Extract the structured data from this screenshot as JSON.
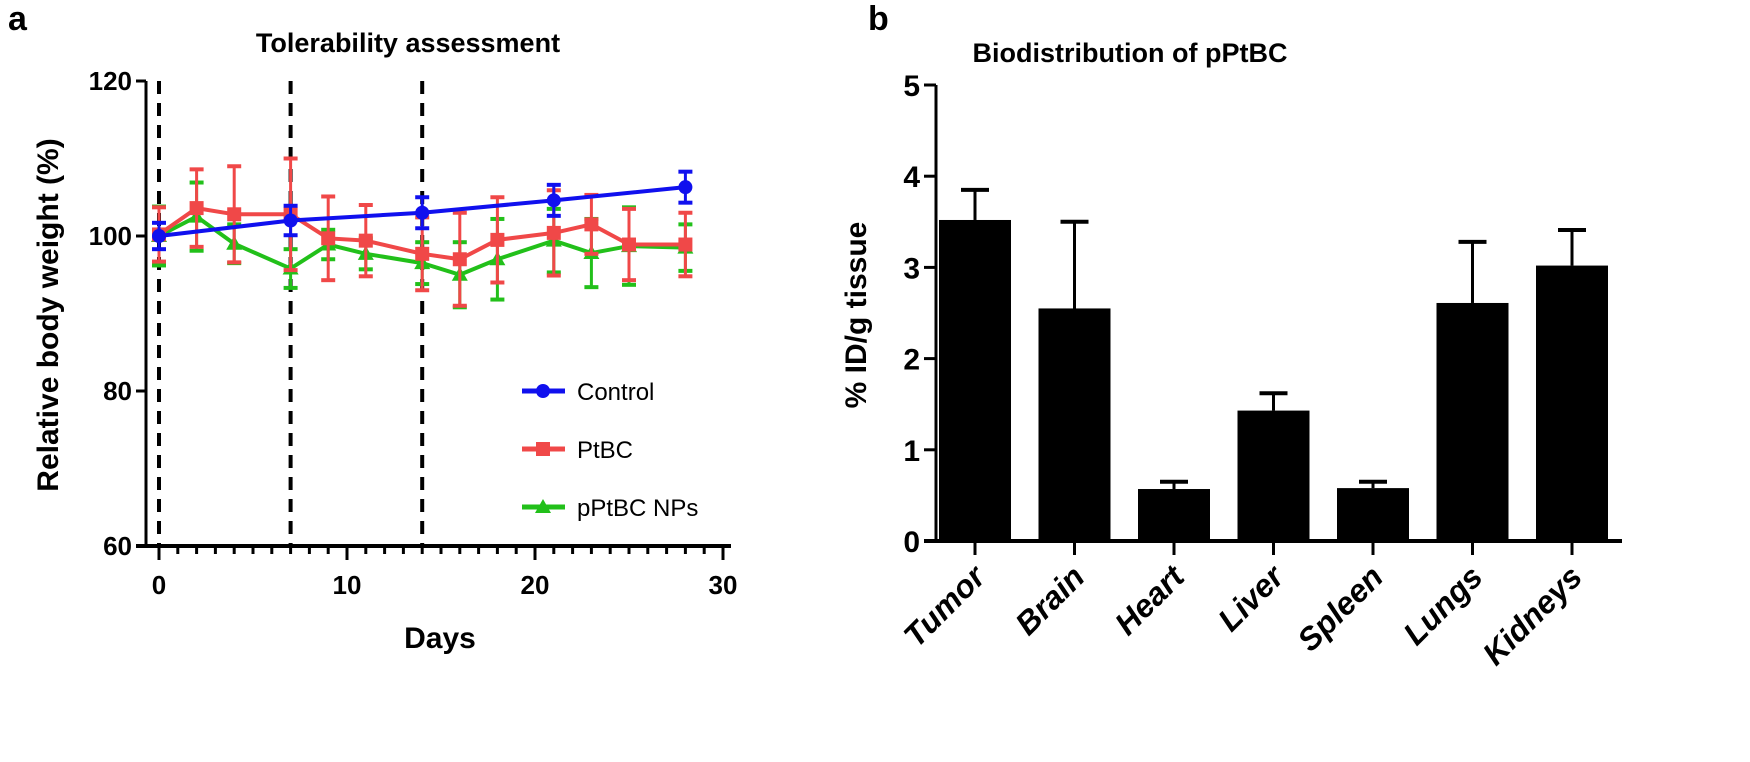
{
  "chart_data": [
    {
      "panel_label": "a",
      "type": "line",
      "title": "Tolerability assessment",
      "xlabel": "Days",
      "ylabel": "Relative body weight (%)",
      "xlim": [
        0,
        30
      ],
      "ylim": [
        60,
        120
      ],
      "xticks": [
        0,
        10,
        20,
        30
      ],
      "yticks": [
        60,
        80,
        100,
        120
      ],
      "vertical_dashed_lines_at_days": [
        0,
        7,
        14
      ],
      "grid": false,
      "legend": "bottom-right",
      "series": [
        {
          "name": "Control",
          "color": "#1010ee",
          "marker": "circle",
          "x": [
            0,
            7,
            14,
            21,
            28
          ],
          "y": [
            100,
            102.0,
            103.0,
            104.6,
            106.3
          ],
          "error": [
            1.7,
            1.9,
            2.0,
            2.0,
            2.0
          ]
        },
        {
          "name": "PtBC",
          "color": "#f04848",
          "marker": "square",
          "x": [
            0,
            2,
            4,
            7,
            9,
            11,
            14,
            16,
            18,
            21,
            23,
            25,
            28
          ],
          "y": [
            100.2,
            103.6,
            102.8,
            102.8,
            99.7,
            99.4,
            97.7,
            97.0,
            99.5,
            100.4,
            101.5,
            98.9,
            98.9
          ],
          "error": [
            3.5,
            5.0,
            6.2,
            7.2,
            5.4,
            4.6,
            4.7,
            6.0,
            5.5,
            5.5,
            3.8,
            4.6,
            4.1
          ]
        },
        {
          "name": "pPtBC NPs",
          "color": "#22c01a",
          "marker": "triangle",
          "x": [
            0,
            2,
            4,
            7,
            9,
            11,
            14,
            16,
            18,
            21,
            23,
            25,
            28
          ],
          "y": [
            100,
            102.5,
            99.0,
            95.8,
            98.9,
            97.7,
            96.5,
            95.0,
            97.0,
            99.4,
            97.8,
            98.7,
            98.5
          ],
          "error": [
            3.8,
            4.4,
            2.5,
            2.5,
            1.9,
            2.0,
            2.7,
            4.2,
            5.2,
            4.1,
            4.4,
            5.0,
            3.0
          ]
        }
      ]
    },
    {
      "panel_label": "b",
      "type": "bar",
      "title": "Biodistribution of pPtBC",
      "xlabel": "",
      "ylabel": "% ID/g tissue",
      "ylim": [
        0,
        5
      ],
      "yticks": [
        0,
        1,
        2,
        3,
        4,
        5
      ],
      "grid": false,
      "bar_color": "#000000",
      "categories": [
        "Tumor",
        "Brain",
        "Heart",
        "Liver",
        "Spleen",
        "Lungs",
        "Kidneys"
      ],
      "values": [
        3.52,
        2.55,
        0.57,
        1.43,
        0.58,
        2.61,
        3.02
      ],
      "error": [
        0.33,
        0.95,
        0.08,
        0.19,
        0.07,
        0.67,
        0.39
      ]
    }
  ]
}
